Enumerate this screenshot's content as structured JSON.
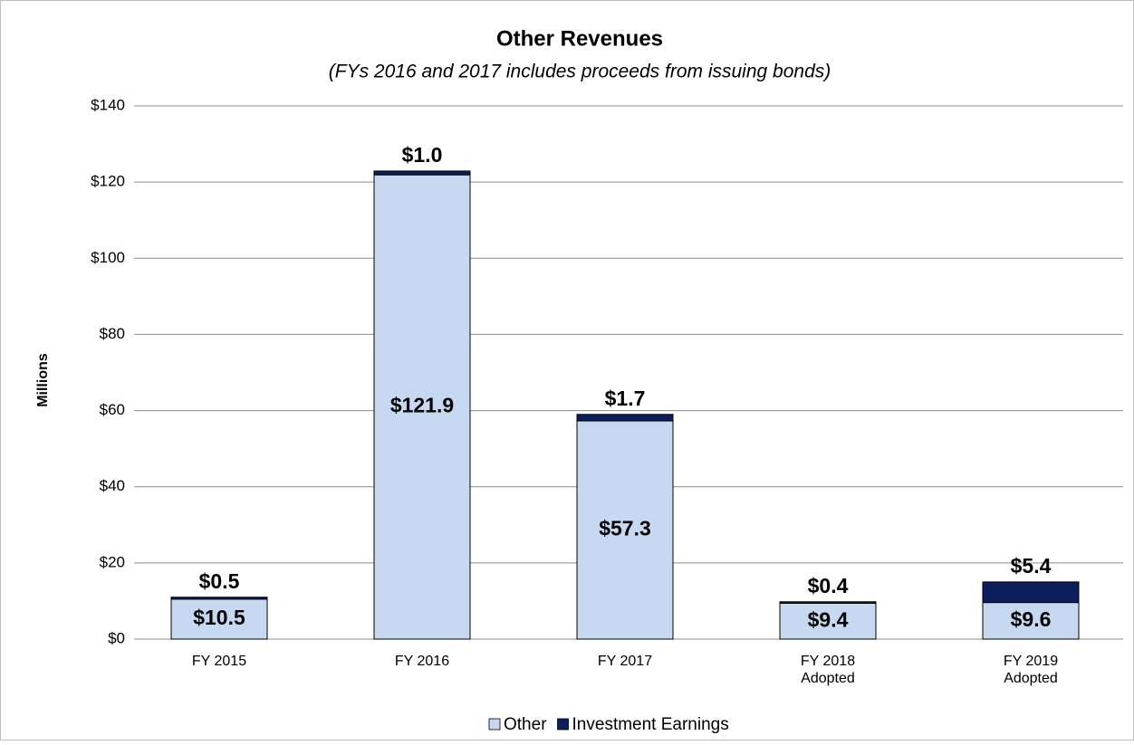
{
  "chart_data": {
    "type": "stacked_bar",
    "title": "Other Revenues",
    "subtitle": "(FYs 2016 and 2017 includes proceeds from issuing bonds)",
    "y_label": "Millions",
    "categories": [
      "FY 2015",
      "FY 2016",
      "FY 2017",
      "FY 2018\nAdopted",
      "FY 2019\nAdopted"
    ],
    "series": [
      {
        "name": "Other",
        "color": "#c6d9f1",
        "values": [
          10.5,
          121.9,
          57.3,
          9.4,
          9.6
        ],
        "value_labels": [
          "$10.5",
          "$121.9",
          "$57.3",
          "$9.4",
          "$9.6"
        ]
      },
      {
        "name": "Investment Earnings",
        "color": "#0c1f5c",
        "values": [
          0.5,
          1.0,
          1.7,
          0.4,
          5.4
        ],
        "value_labels": [
          "$0.5",
          "$1.0",
          "$1.7",
          "$0.4",
          "$5.4"
        ]
      }
    ],
    "ylim": [
      0,
      140
    ],
    "yticks": [
      {
        "value": 0,
        "label": "$0"
      },
      {
        "value": 20,
        "label": "$20"
      },
      {
        "value": 40,
        "label": "$40"
      },
      {
        "value": 60,
        "label": "$60"
      },
      {
        "value": 80,
        "label": "$80"
      },
      {
        "value": 100,
        "label": "$100"
      },
      {
        "value": 120,
        "label": "$120"
      },
      {
        "value": 140,
        "label": "$140"
      }
    ],
    "grid": true,
    "legend": "bottom"
  }
}
